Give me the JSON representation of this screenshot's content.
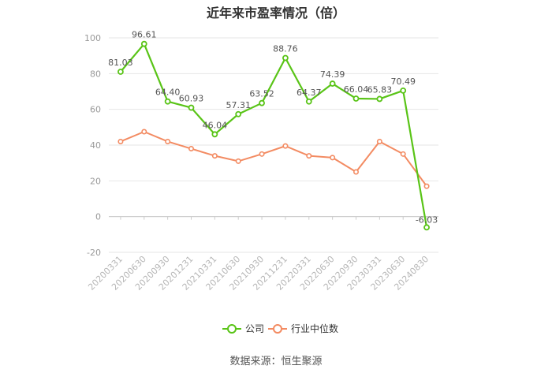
{
  "page": {
    "title": "近年来市盈率情况（倍）",
    "source": "数据来源：恒生聚源"
  },
  "colors": {
    "company": "#59c417",
    "industry": "#f38b62",
    "grid": "#e6e6e6",
    "axis": "#cccccc",
    "text": "#333333"
  },
  "legend": {
    "items": [
      {
        "label": "公司",
        "icon": "line-with-circle-marker"
      },
      {
        "label": "行业中位数",
        "icon": "line-with-circle-marker"
      }
    ]
  },
  "chart_data": {
    "type": "line",
    "title": "近年来市盈率情况（倍）",
    "categories": [
      "20200331",
      "20200630",
      "20200930",
      "20201231",
      "20210331",
      "20210630",
      "20210930",
      "20211231",
      "20220331",
      "20220630",
      "20220930",
      "20230331",
      "20230630",
      "20240830"
    ],
    "series": [
      {
        "name": "公司",
        "values": [
          81.03,
          96.61,
          64.4,
          60.93,
          46.04,
          57.31,
          63.52,
          88.76,
          64.37,
          74.39,
          66.04,
          65.83,
          70.49,
          -6.03
        ],
        "labels": [
          "81.03",
          "96.61",
          "64.40",
          "60.93",
          "46.04",
          "57.31",
          "63.52",
          "88.76",
          "64.37",
          "74.39",
          "66.04",
          "65.83",
          "70.49",
          "-6.03"
        ]
      },
      {
        "name": "行业中位数",
        "values": [
          42,
          47.5,
          42,
          38,
          34,
          31,
          35,
          39.5,
          34,
          33,
          25,
          42,
          35,
          17
        ]
      }
    ],
    "ylim": [
      -20,
      100
    ],
    "yticks": [
      -20,
      0,
      20,
      40,
      60,
      80,
      100
    ],
    "ytick_labels": [
      "-20",
      "0",
      "20",
      "40",
      "60",
      "80",
      "100"
    ],
    "grid": true,
    "legend_position": "bottom"
  }
}
